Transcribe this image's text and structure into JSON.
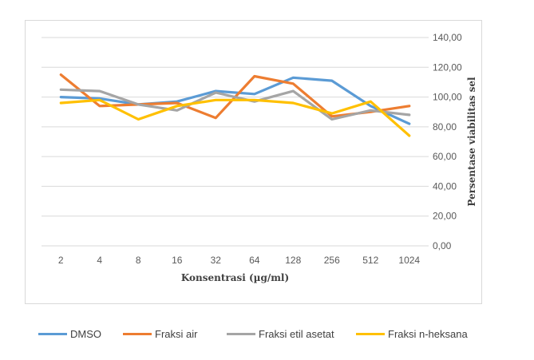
{
  "chart_data": {
    "type": "line",
    "categories": [
      "2",
      "4",
      "8",
      "16",
      "32",
      "64",
      "128",
      "256",
      "512",
      "1024"
    ],
    "series": [
      {
        "name": "DMSO",
        "color": "#5b9bd5",
        "values": [
          100,
          99,
          95,
          97,
          104,
          102,
          113,
          111,
          94,
          82
        ]
      },
      {
        "name": "Fraksi air",
        "color": "#ed7d31",
        "values": [
          115,
          94,
          95,
          96,
          86,
          114,
          109,
          87,
          90,
          94
        ]
      },
      {
        "name": "Fraksi etil asetat",
        "color": "#a5a5a5",
        "values": [
          105,
          104,
          95,
          91,
          103,
          97,
          104,
          85,
          91,
          88
        ]
      },
      {
        "name": "Fraksi n-heksana",
        "color": "#ffc000",
        "values": [
          96,
          98,
          85,
          94,
          98,
          98,
          96,
          89,
          97,
          74
        ]
      }
    ],
    "xlabel": "Konsentrasi (µg/ml)",
    "ylabel": "Persentase viabilitas sel",
    "ylim": [
      0,
      140
    ],
    "yticks": [
      "0,00",
      "20,00",
      "40,00",
      "60,00",
      "80,00",
      "100,00",
      "120,00",
      "140,00"
    ],
    "y_axis_side": "right",
    "grid": true,
    "legend": "bottom",
    "colors": {
      "grid": "#d9d9d9",
      "tick_text": "#595959",
      "title_text": "#404040"
    }
  }
}
